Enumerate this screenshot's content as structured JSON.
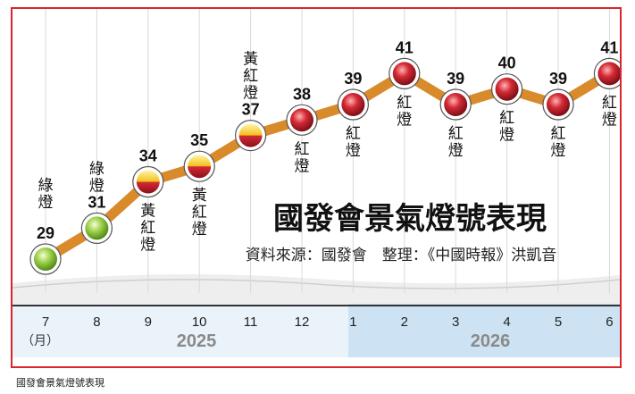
{
  "chart_data": {
    "type": "line",
    "title": "國發會景氣燈號表現",
    "source": "資料來源：國發會　整理：《中國時報》洪凱音",
    "x": [
      "7",
      "8",
      "9",
      "10",
      "11",
      "12",
      "1",
      "2",
      "3",
      "4",
      "5",
      "6"
    ],
    "month_unit": "（月）",
    "years": [
      {
        "label": "2025",
        "months": [
          "7",
          "8",
          "9",
          "10",
          "11",
          "12"
        ]
      },
      {
        "label": "2026",
        "months": [
          "1",
          "2",
          "3",
          "4",
          "5",
          "6"
        ]
      }
    ],
    "values": [
      29,
      31,
      34,
      35,
      37,
      38,
      39,
      41,
      39,
      40,
      39,
      41
    ],
    "signals": [
      "綠燈",
      "綠燈",
      "黃紅燈",
      "黃紅燈",
      "黃紅燈",
      "紅燈",
      "紅燈",
      "紅燈",
      "紅燈",
      "紅燈",
      "紅燈",
      "紅燈"
    ],
    "signal_colors": {
      "綠燈": "#8cc63f",
      "黃紅燈": "#f3c21a",
      "紅燈": "#c8202e"
    },
    "line_color": "#d98a2b"
  },
  "caption": "國發會景氣燈號表現"
}
